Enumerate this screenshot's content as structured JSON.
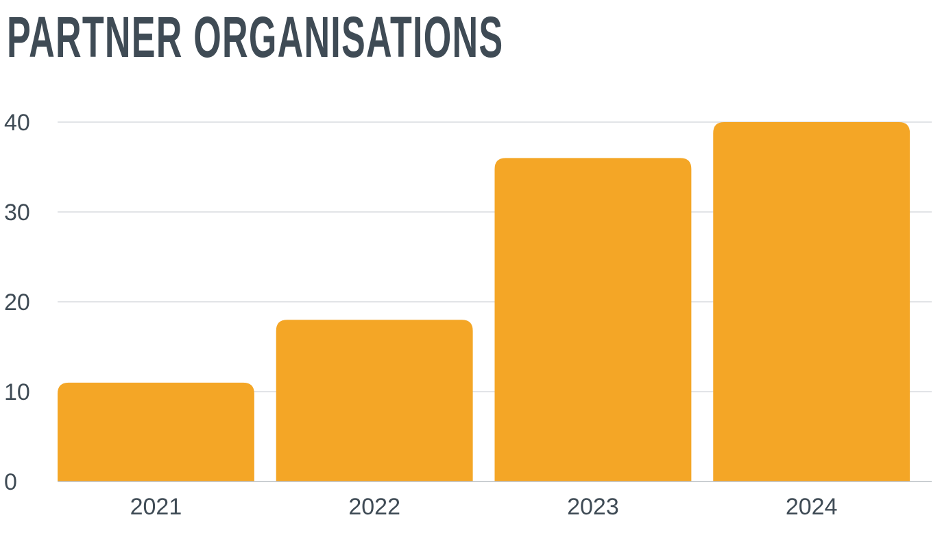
{
  "chart_data": {
    "type": "bar",
    "title": "PARTNER ORGANISATIONS",
    "xlabel": "",
    "ylabel": "",
    "categories": [
      "2021",
      "2022",
      "2023",
      "2024"
    ],
    "values": [
      11,
      18,
      36,
      40
    ],
    "ylim": [
      0,
      40
    ],
    "yticks": [
      0,
      10,
      20,
      30,
      40
    ],
    "grid": true,
    "legend": "none",
    "colors": {
      "bar": "#f4a626",
      "grid": "#d9dcdf",
      "axis": "#b9bec3",
      "text": "#3f4b55"
    }
  }
}
